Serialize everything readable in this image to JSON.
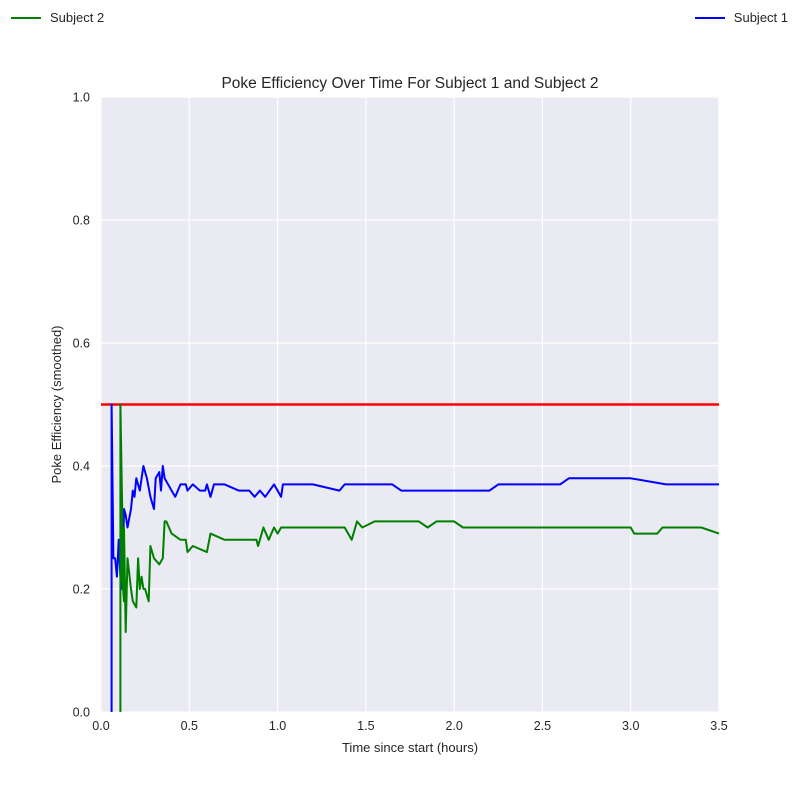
{
  "chart_data": {
    "type": "line",
    "title": "Poke Efficiency Over Time For Subject 1 and Subject 2",
    "xlabel": "Time since start (hours)",
    "ylabel": "Poke Efficiency (smoothed)",
    "xlim": [
      0.0,
      3.5
    ],
    "ylim": [
      0.0,
      1.0
    ],
    "x_ticks": [
      "0.0",
      "0.5",
      "1.0",
      "1.5",
      "2.0",
      "2.5",
      "3.0",
      "3.5"
    ],
    "y_ticks": [
      "0.0",
      "0.2",
      "0.4",
      "0.6",
      "0.8",
      "1.0"
    ],
    "grid": true,
    "background_color": "#eaeaf2",
    "legend": [
      {
        "name": "Subject 2",
        "color": "#008000",
        "placement": "top-left"
      },
      {
        "name": "Subject 1",
        "color": "#0000ff",
        "placement": "top-right"
      }
    ],
    "reference_line": {
      "y": 0.5,
      "color": "#ff0000"
    },
    "series": [
      {
        "name": "Subject 1",
        "color": "#0000ff",
        "x": [
          0.06,
          0.06,
          0.07,
          0.08,
          0.09,
          0.1,
          0.11,
          0.12,
          0.13,
          0.14,
          0.15,
          0.17,
          0.18,
          0.19,
          0.2,
          0.22,
          0.24,
          0.26,
          0.28,
          0.3,
          0.31,
          0.33,
          0.34,
          0.35,
          0.36,
          0.38,
          0.4,
          0.42,
          0.45,
          0.48,
          0.49,
          0.52,
          0.56,
          0.59,
          0.6,
          0.62,
          0.64,
          0.66,
          0.7,
          0.78,
          0.8,
          0.84,
          0.87,
          0.9,
          0.93,
          0.98,
          1.02,
          1.03,
          1.05,
          1.15,
          1.2,
          1.35,
          1.38,
          1.42,
          1.5,
          1.65,
          1.7,
          1.8,
          2.0,
          2.05,
          2.12,
          2.2,
          2.25,
          2.4,
          2.45,
          2.6,
          2.65,
          2.8,
          3.0,
          3.2,
          3.5
        ],
        "y": [
          0.0,
          0.5,
          0.25,
          0.25,
          0.22,
          0.28,
          0.22,
          0.2,
          0.33,
          0.32,
          0.3,
          0.33,
          0.36,
          0.35,
          0.38,
          0.36,
          0.4,
          0.38,
          0.35,
          0.33,
          0.38,
          0.39,
          0.36,
          0.4,
          0.38,
          0.37,
          0.36,
          0.35,
          0.37,
          0.37,
          0.36,
          0.37,
          0.36,
          0.36,
          0.37,
          0.35,
          0.37,
          0.37,
          0.37,
          0.36,
          0.36,
          0.36,
          0.35,
          0.36,
          0.35,
          0.37,
          0.35,
          0.37,
          0.37,
          0.37,
          0.37,
          0.36,
          0.37,
          0.37,
          0.37,
          0.37,
          0.36,
          0.36,
          0.36,
          0.36,
          0.36,
          0.36,
          0.37,
          0.37,
          0.37,
          0.37,
          0.38,
          0.38,
          0.38,
          0.37,
          0.37
        ]
      },
      {
        "name": "Subject 2",
        "color": "#008000",
        "x": [
          0.11,
          0.11,
          0.12,
          0.12,
          0.13,
          0.13,
          0.14,
          0.15,
          0.17,
          0.18,
          0.2,
          0.21,
          0.22,
          0.23,
          0.24,
          0.25,
          0.27,
          0.28,
          0.29,
          0.3,
          0.33,
          0.35,
          0.36,
          0.37,
          0.4,
          0.45,
          0.48,
          0.49,
          0.52,
          0.6,
          0.62,
          0.7,
          0.8,
          0.88,
          0.89,
          0.92,
          0.95,
          0.98,
          1.0,
          1.02,
          1.05,
          1.15,
          1.3,
          1.38,
          1.4,
          1.42,
          1.45,
          1.48,
          1.55,
          1.7,
          1.8,
          1.85,
          1.9,
          2.0,
          2.05,
          2.1,
          2.2,
          2.3,
          2.6,
          3.0,
          3.02,
          3.05,
          3.1,
          3.15,
          3.18,
          3.2,
          3.25,
          3.3,
          3.4,
          3.5
        ],
        "y": [
          0.0,
          0.5,
          0.33,
          0.22,
          0.18,
          0.3,
          0.13,
          0.25,
          0.2,
          0.18,
          0.17,
          0.25,
          0.2,
          0.22,
          0.2,
          0.2,
          0.18,
          0.27,
          0.26,
          0.25,
          0.24,
          0.25,
          0.31,
          0.31,
          0.29,
          0.28,
          0.28,
          0.26,
          0.27,
          0.26,
          0.29,
          0.28,
          0.28,
          0.28,
          0.27,
          0.3,
          0.28,
          0.3,
          0.29,
          0.3,
          0.3,
          0.3,
          0.3,
          0.3,
          0.29,
          0.28,
          0.31,
          0.3,
          0.31,
          0.31,
          0.31,
          0.3,
          0.31,
          0.31,
          0.3,
          0.3,
          0.3,
          0.3,
          0.3,
          0.3,
          0.29,
          0.29,
          0.29,
          0.29,
          0.3,
          0.3,
          0.3,
          0.3,
          0.3,
          0.29
        ]
      }
    ]
  }
}
